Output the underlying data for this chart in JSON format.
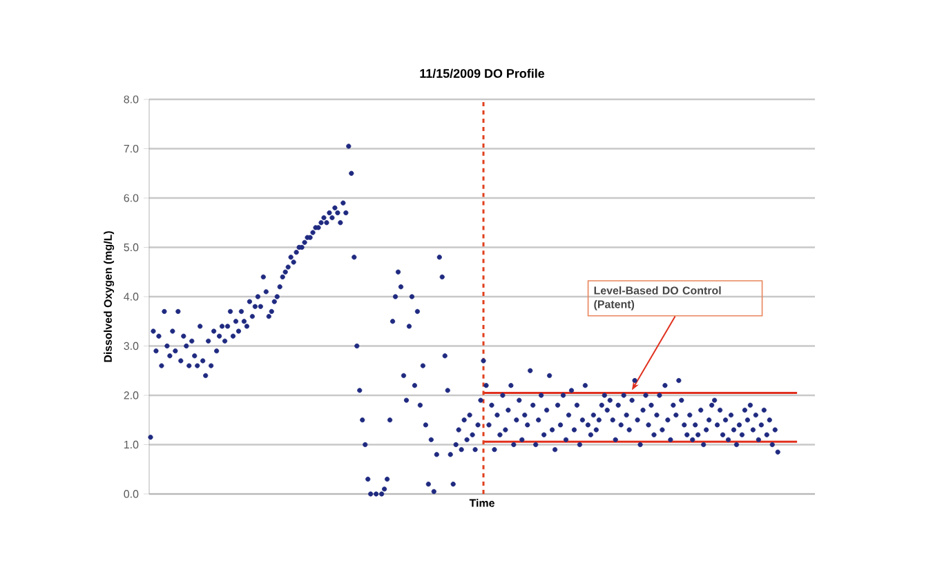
{
  "chart_data": {
    "type": "scatter",
    "title": "11/15/2009 DO Profile",
    "xlabel": "Time",
    "ylabel": "Dissolved Oxygen (mg/L)",
    "categories": [
      null,
      null,
      null,
      null,
      null,
      null,
      null,
      null,
      null,
      null,
      null,
      null,
      null,
      null,
      null,
      null,
      null,
      null,
      null,
      null,
      null,
      null,
      null,
      null,
      null,
      null,
      null,
      null,
      null,
      null,
      null,
      null,
      null,
      null,
      null,
      null,
      null,
      null,
      null,
      null,
      null,
      null,
      null,
      null,
      null,
      null,
      null,
      null,
      null,
      null,
      null,
      null,
      null,
      null,
      null,
      null,
      null,
      null,
      null,
      null,
      null,
      null,
      null,
      null,
      null,
      null,
      null,
      null,
      null,
      null,
      null,
      null,
      null,
      null,
      null,
      null,
      null,
      null,
      null,
      null,
      null,
      null,
      null,
      null,
      null,
      null,
      null,
      null,
      null,
      null,
      null,
      null,
      null,
      null,
      null,
      null,
      null,
      null,
      null,
      null,
      null,
      null,
      null,
      null,
      null,
      null,
      null,
      null,
      null,
      null,
      null,
      null,
      null,
      null,
      null,
      null,
      null,
      null,
      null,
      null,
      null,
      null,
      null,
      null,
      null,
      null,
      null,
      null,
      null,
      null,
      null,
      null,
      null,
      null,
      null,
      null,
      null,
      null,
      null,
      null,
      null,
      null,
      null,
      null,
      null,
      null,
      null,
      null,
      null,
      null,
      null,
      null,
      null,
      null,
      null,
      null,
      null,
      null,
      null,
      null,
      null,
      null,
      null,
      null,
      null,
      null,
      null,
      null,
      null,
      null,
      null,
      null,
      null,
      null,
      null,
      null,
      null,
      null,
      null,
      null,
      null,
      null,
      null,
      null,
      null,
      null,
      null,
      null,
      null,
      null,
      null,
      null,
      null,
      null,
      null,
      null,
      null,
      null,
      null,
      null,
      null,
      null,
      null,
      null,
      null,
      null,
      null,
      null,
      null,
      null,
      null,
      null,
      null,
      null,
      null,
      null,
      null,
      null,
      null,
      null,
      null,
      null,
      null,
      null,
      null,
      null,
      null,
      null,
      null,
      null,
      null,
      null,
      null,
      null,
      null,
      null,
      null,
      null,
      null,
      null,
      null,
      null
    ],
    "ylim": [
      0,
      8
    ],
    "yticks": [
      {
        "value": 0,
        "label": "0.0"
      },
      {
        "value": 1,
        "label": "1.0"
      },
      {
        "value": 2,
        "label": "2.0"
      },
      {
        "value": 3,
        "label": "3.0"
      },
      {
        "value": 4,
        "label": "4.0"
      },
      {
        "value": 5,
        "label": "5.0"
      },
      {
        "value": 6,
        "label": "6.0"
      },
      {
        "value": 7,
        "label": "7.0"
      },
      {
        "value": 8,
        "label": "8.0"
      }
    ],
    "grid": "y",
    "tick_labels": "y",
    "ref_lines": [
      {
        "axis": "x",
        "color": "#e0401e",
        "line_style": "dashed"
      }
    ],
    "annotations": [
      "Level-Based DO Control (Patent)"
    ],
    "series": [
      {
        "color": "#1f2a80",
        "marker": "circle",
        "values": [
          1.15,
          3.3,
          2.9,
          3.2,
          2.6,
          3.7,
          3.0,
          2.8,
          3.3,
          2.9,
          3.7,
          2.7,
          3.2,
          3.0,
          2.6,
          3.1,
          2.8,
          2.6,
          3.4,
          2.7,
          2.4,
          3.1,
          2.6,
          3.3,
          2.9,
          3.2,
          3.4,
          3.1,
          3.4,
          3.7,
          3.2,
          3.5,
          3.3,
          3.7,
          3.5,
          3.4,
          3.9,
          3.6,
          3.8,
          4.0,
          3.8,
          4.4,
          4.1,
          3.6,
          3.7,
          3.9,
          4.0,
          4.2,
          4.4,
          4.5,
          4.6,
          4.8,
          4.7,
          4.9,
          5.0,
          5.0,
          5.1,
          5.2,
          5.2,
          5.3,
          5.4,
          5.4,
          5.5,
          5.6,
          5.5,
          5.7,
          5.6,
          5.8,
          5.7,
          5.5,
          5.9,
          5.7,
          7.05,
          6.5,
          4.8,
          3.0,
          2.1,
          1.5,
          1.0,
          0.3,
          0.0,
          null,
          0.0,
          null,
          0.0,
          0.1,
          0.3,
          1.5,
          3.5,
          4.0,
          4.5,
          4.2,
          2.4,
          1.9,
          3.4,
          4.0,
          2.2,
          3.7,
          1.8,
          2.6,
          1.4,
          0.2,
          1.1,
          0.05,
          0.8,
          4.8,
          4.4,
          2.8,
          2.1,
          0.8,
          0.2,
          1.0,
          1.3,
          0.9,
          1.5,
          1.1,
          1.6,
          1.2,
          0.9,
          1.4,
          1.9,
          2.7,
          2.2,
          1.4,
          1.8,
          0.9,
          1.6,
          1.2,
          2.0,
          1.3,
          1.7,
          2.2,
          1.0,
          1.5,
          1.9,
          1.1,
          1.6,
          1.4,
          2.5,
          1.8,
          1.0,
          1.5,
          2.0,
          1.2,
          1.7,
          2.4,
          1.3,
          0.9,
          1.8,
          1.4,
          2.0,
          1.1,
          1.6,
          2.1,
          1.3,
          1.8,
          1.0,
          1.5,
          2.2,
          1.4,
          1.2,
          1.6,
          1.3,
          1.5,
          1.8,
          2.0,
          1.7,
          1.9,
          1.5,
          1.1,
          1.8,
          1.4,
          2.0,
          1.6,
          1.3,
          1.9,
          2.3,
          1.5,
          1.0,
          1.7,
          2.0,
          1.4,
          1.8,
          1.2,
          1.6,
          2.0,
          1.3,
          2.2,
          1.5,
          1.1,
          1.8,
          1.6,
          2.3,
          1.9,
          1.4,
          1.2,
          1.6,
          1.1,
          1.4,
          1.2,
          1.7,
          1.0,
          1.3,
          1.5,
          1.8,
          1.9,
          1.4,
          1.7,
          1.2,
          1.5,
          1.1,
          1.6,
          1.3,
          1.0,
          1.4,
          1.2,
          1.7,
          1.5,
          1.8,
          1.3,
          1.6,
          1.1,
          1.4,
          1.7,
          1.2,
          1.5,
          1.0,
          1.3,
          0.85,
          null,
          null,
          null,
          null,
          null,
          null,
          null,
          null,
          null,
          null,
          null,
          null,
          null
        ]
      },
      {
        "type": "line",
        "color": "#e0301e",
        "values": [
          null,
          null,
          null,
          null,
          null,
          null,
          null,
          null,
          null,
          null,
          null,
          null,
          null,
          null,
          null,
          null,
          null,
          null,
          null,
          null,
          null,
          null,
          null,
          null,
          null,
          null,
          null,
          null,
          null,
          null,
          null,
          null,
          null,
          null,
          null,
          null,
          null,
          null,
          null,
          null,
          null,
          null,
          null,
          null,
          null,
          null,
          null,
          null,
          null,
          null,
          null,
          null,
          null,
          null,
          null,
          null,
          null,
          null,
          null,
          null,
          null,
          null,
          null,
          null,
          null,
          null,
          null,
          null,
          null,
          null,
          null,
          null,
          null,
          null,
          null,
          null,
          null,
          null,
          null,
          null,
          null,
          null,
          null,
          null,
          null,
          null,
          null,
          null,
          null,
          null,
          null,
          null,
          null,
          null,
          null,
          null,
          null,
          null,
          null,
          null,
          null,
          null,
          null,
          null,
          null,
          null,
          null,
          null,
          null,
          null,
          null,
          null,
          null,
          null,
          null,
          null,
          null,
          null,
          null,
          null,
          null,
          2.05,
          2.05,
          2.05,
          2.05,
          2.05,
          2.05,
          2.05,
          2.05,
          2.05,
          2.05,
          2.05,
          2.05,
          2.05,
          2.05,
          2.05,
          2.05,
          2.05,
          2.05,
          2.05,
          2.05,
          2.05,
          2.05,
          2.05,
          2.05,
          2.05,
          2.05,
          2.05,
          2.05,
          2.05,
          2.05,
          2.05,
          2.05,
          2.05,
          2.05,
          2.05,
          2.05,
          2.05,
          2.05,
          2.05,
          2.05,
          2.05,
          2.05,
          2.05,
          2.05,
          2.05,
          2.05,
          2.05,
          2.05,
          2.05,
          2.05,
          2.05,
          2.05,
          2.05,
          2.05,
          2.05,
          2.05,
          2.05,
          2.05,
          2.05,
          2.05,
          2.05,
          2.05,
          2.05,
          2.05,
          2.05,
          2.05,
          2.05,
          2.05,
          2.05,
          2.05,
          2.05,
          2.05,
          2.05,
          2.05,
          2.05,
          2.05,
          2.05,
          2.05,
          2.05,
          2.05,
          2.05,
          2.05,
          2.05,
          2.05,
          2.05,
          2.05,
          2.05,
          2.05,
          2.05,
          2.05,
          2.05,
          2.05,
          2.05,
          2.05,
          2.05,
          2.05,
          2.05,
          2.05,
          2.05,
          2.05,
          2.05,
          2.05,
          2.05,
          2.05,
          2.05,
          2.05,
          2.05,
          2.05,
          2.05,
          2.05,
          2.05,
          2.05,
          2.05,
          2.05,
          2.05,
          null,
          null,
          null,
          null,
          null,
          null
        ]
      },
      {
        "type": "line",
        "color": "#e0301e",
        "values": [
          null,
          null,
          null,
          null,
          null,
          null,
          null,
          null,
          null,
          null,
          null,
          null,
          null,
          null,
          null,
          null,
          null,
          null,
          null,
          null,
          null,
          null,
          null,
          null,
          null,
          null,
          null,
          null,
          null,
          null,
          null,
          null,
          null,
          null,
          null,
          null,
          null,
          null,
          null,
          null,
          null,
          null,
          null,
          null,
          null,
          null,
          null,
          null,
          null,
          null,
          null,
          null,
          null,
          null,
          null,
          null,
          null,
          null,
          null,
          null,
          null,
          null,
          null,
          null,
          null,
          null,
          null,
          null,
          null,
          null,
          null,
          null,
          null,
          null,
          null,
          null,
          null,
          null,
          null,
          null,
          null,
          null,
          null,
          null,
          null,
          null,
          null,
          null,
          null,
          null,
          null,
          null,
          null,
          null,
          null,
          null,
          null,
          null,
          null,
          null,
          null,
          null,
          null,
          null,
          null,
          null,
          null,
          null,
          null,
          null,
          null,
          null,
          null,
          null,
          null,
          null,
          null,
          null,
          null,
          null,
          null,
          1.06,
          1.06,
          1.06,
          1.06,
          1.06,
          1.06,
          1.06,
          1.06,
          1.06,
          1.06,
          1.06,
          1.06,
          1.06,
          1.06,
          1.06,
          1.06,
          1.06,
          1.06,
          1.06,
          1.06,
          1.06,
          1.06,
          1.06,
          1.06,
          1.06,
          1.06,
          1.06,
          1.06,
          1.06,
          1.06,
          1.06,
          1.06,
          1.06,
          1.06,
          1.06,
          1.06,
          1.06,
          1.06,
          1.06,
          1.06,
          1.06,
          1.06,
          1.06,
          1.06,
          1.06,
          1.06,
          1.06,
          1.06,
          1.06,
          1.06,
          1.06,
          1.06,
          1.06,
          1.06,
          1.06,
          1.06,
          1.06,
          1.06,
          1.06,
          1.06,
          1.06,
          1.06,
          1.06,
          1.06,
          1.06,
          1.06,
          1.06,
          1.06,
          1.06,
          1.06,
          1.06,
          1.06,
          1.06,
          1.06,
          1.06,
          1.06,
          1.06,
          1.06,
          1.06,
          1.06,
          1.06,
          1.06,
          1.06,
          1.06,
          1.06,
          1.06,
          1.06,
          1.06,
          1.06,
          1.06,
          1.06,
          1.06,
          1.06,
          1.06,
          1.06,
          1.06,
          1.06,
          1.06,
          1.06,
          1.06,
          1.06,
          1.06,
          1.06,
          1.06,
          1.06,
          1.06,
          1.06,
          1.06,
          1.06,
          1.06,
          1.06,
          1.06,
          1.06,
          1.06,
          1.06,
          null,
          null,
          null,
          null,
          null,
          null
        ]
      }
    ]
  }
}
